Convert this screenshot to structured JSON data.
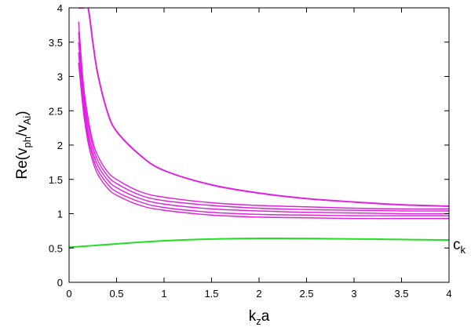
{
  "chart_data": {
    "type": "line",
    "xlim": [
      0,
      4
    ],
    "ylim": [
      0,
      4
    ],
    "xticks": [
      "0",
      "0.5",
      "1",
      "1.5",
      "2",
      "2.5",
      "3",
      "3.5",
      "4"
    ],
    "yticks": [
      "0",
      "0.5",
      "1",
      "1.5",
      "2",
      "2.5",
      "3",
      "3.5",
      "4"
    ],
    "xlabel": {
      "base": "k",
      "sub": "z",
      "tail": "a"
    },
    "ylabel": {
      "pre": "Re(v",
      "sub1": "ph",
      "mid": "/v",
      "sub2": "Ai",
      "post": ")"
    },
    "annotation": {
      "base": "c",
      "sub": "k"
    },
    "grid": false,
    "legend": "none",
    "colors": {
      "magenta_series": "#e020e0",
      "green_series": "#22dd22"
    },
    "x": [
      0.1,
      0.15,
      0.2,
      0.25,
      0.3,
      0.4,
      0.5,
      0.75,
      1.0,
      1.5,
      2.0,
      2.5,
      3.0,
      3.5,
      4.0
    ],
    "series": [
      {
        "color": "#e020e0",
        "values": [
          4.0,
          4.0,
          4.0,
          3.5,
          3.05,
          2.5,
          2.2,
          1.85,
          1.63,
          1.42,
          1.3,
          1.22,
          1.17,
          1.13,
          1.11
        ]
      },
      {
        "color": "#e020e0",
        "values": [
          3.8,
          2.9,
          2.4,
          2.05,
          1.85,
          1.62,
          1.5,
          1.32,
          1.24,
          1.16,
          1.12,
          1.1,
          1.08,
          1.07,
          1.07
        ]
      },
      {
        "color": "#e020e0",
        "values": [
          3.65,
          2.8,
          2.3,
          1.98,
          1.78,
          1.56,
          1.44,
          1.27,
          1.19,
          1.12,
          1.08,
          1.06,
          1.05,
          1.04,
          1.04
        ]
      },
      {
        "color": "#e020e0",
        "values": [
          3.5,
          2.7,
          2.2,
          1.9,
          1.71,
          1.5,
          1.38,
          1.22,
          1.14,
          1.07,
          1.04,
          1.02,
          1.01,
          1.0,
          1.0
        ]
      },
      {
        "color": "#e020e0",
        "values": [
          3.35,
          2.6,
          2.12,
          1.83,
          1.64,
          1.44,
          1.32,
          1.17,
          1.09,
          1.02,
          0.99,
          0.98,
          0.97,
          0.97,
          0.97
        ]
      },
      {
        "color": "#e020e0",
        "values": [
          3.2,
          2.5,
          2.04,
          1.76,
          1.58,
          1.38,
          1.27,
          1.12,
          1.05,
          0.98,
          0.95,
          0.94,
          0.93,
          0.93,
          0.93
        ]
      },
      {
        "color": "#22dd22",
        "x": [
          0.0,
          0.25,
          0.5,
          0.75,
          1.0,
          1.25,
          1.5,
          1.75,
          2.0,
          2.25,
          2.5,
          2.75,
          3.0,
          3.25,
          3.5,
          3.75,
          4.0
        ],
        "values": [
          0.51,
          0.535,
          0.56,
          0.585,
          0.605,
          0.62,
          0.63,
          0.637,
          0.64,
          0.64,
          0.638,
          0.635,
          0.632,
          0.628,
          0.624,
          0.62,
          0.617
        ]
      }
    ]
  }
}
